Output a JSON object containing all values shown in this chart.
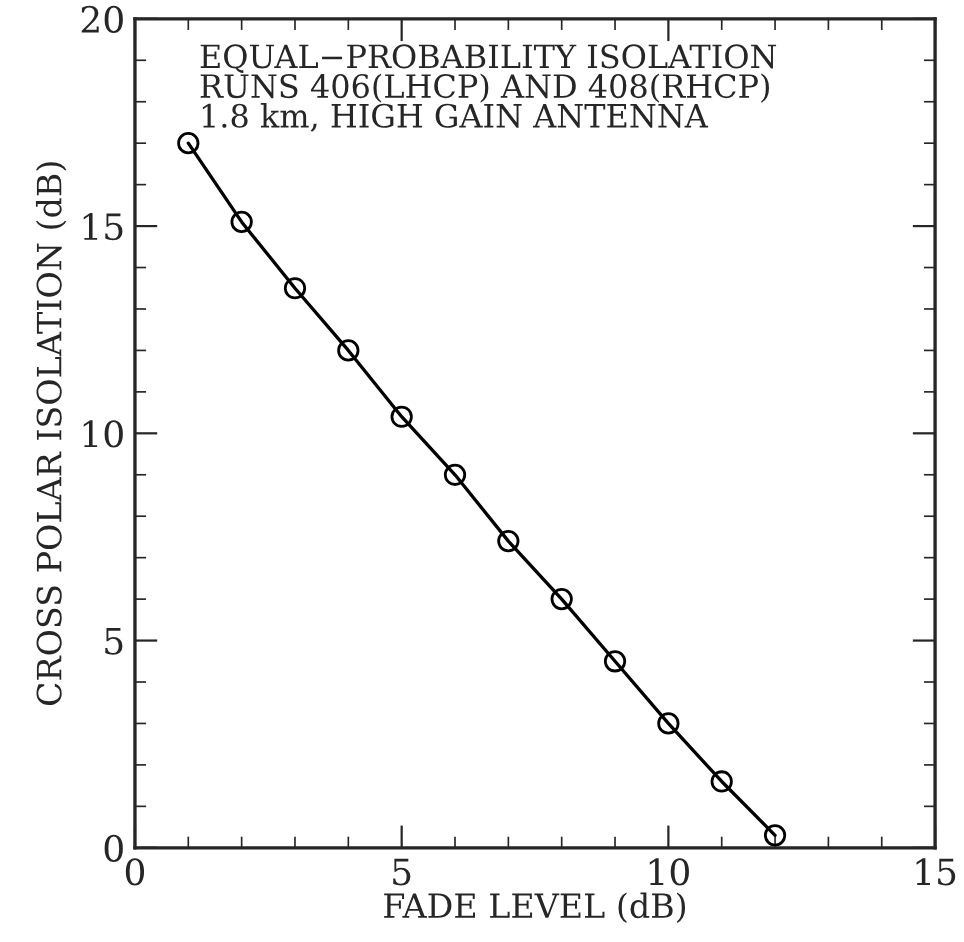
{
  "chart_data": {
    "type": "line",
    "xlabel": "FADE LEVEL (dB)",
    "ylabel": "CROSS POLAR ISOLATION (dB)",
    "annotations": [
      "EQUAL−PROBABILITY ISOLATION",
      "RUNS 406(LHCP) AND 408(RHCP)",
      "1.8 km, HIGH GAIN ANTENNA"
    ],
    "x": [
      1,
      2,
      3,
      4,
      5,
      6,
      7,
      8,
      9,
      10,
      11,
      12
    ],
    "series": [
      {
        "color": "#000000",
        "values": [
          17.0,
          15.1,
          13.5,
          12.0,
          10.4,
          9.0,
          7.4,
          6.0,
          4.5,
          3.0,
          1.6,
          0.3
        ]
      }
    ],
    "xlim": [
      0,
      15
    ],
    "ylim": [
      0,
      20
    ],
    "xticks": [
      0,
      5,
      10,
      15
    ],
    "yticks": [
      0,
      5,
      10,
      15,
      20
    ],
    "marker": "circle",
    "line_style": "solid",
    "grid": false,
    "legend": false
  }
}
